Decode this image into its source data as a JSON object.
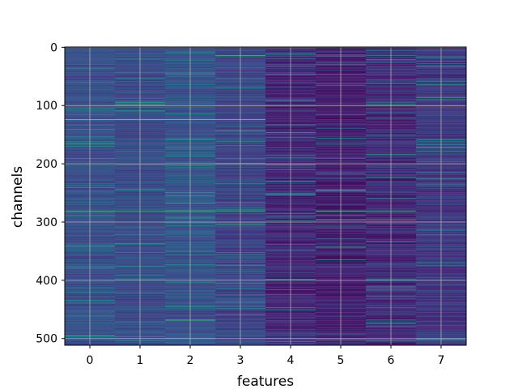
{
  "chart_data": {
    "type": "heatmap",
    "title": "",
    "xlabel": "features",
    "ylabel": "channels",
    "x_ticks": [
      0,
      1,
      2,
      3,
      4,
      5,
      6,
      7
    ],
    "y_ticks": [
      0,
      100,
      200,
      300,
      400,
      500
    ],
    "n_columns": 8,
    "n_rows": 512,
    "xlim": [
      -0.5,
      7.5
    ],
    "ylim": [
      511.5,
      -0.5
    ],
    "y_axis_inverted": true,
    "colormap": "viridis",
    "grid": true,
    "column_mean_intensity": [
      0.32,
      0.3,
      0.33,
      0.27,
      0.17,
      0.13,
      0.18,
      0.22
    ],
    "notable_bright_rows": [
      {
        "row": 124,
        "columns": [
          0,
          1,
          2,
          3
        ],
        "value": 0.9
      },
      {
        "row": 281,
        "columns": [
          0,
          1,
          2,
          3,
          5,
          6
        ],
        "value": 0.8
      },
      {
        "row": 296,
        "columns": [
          5,
          6
        ],
        "value": 0.85
      },
      {
        "row": 400,
        "columns": [
          0,
          1,
          2,
          3,
          6,
          7
        ],
        "value": 0.7
      },
      {
        "row": 503,
        "columns": [
          6,
          7
        ],
        "value": 0.75
      }
    ]
  }
}
